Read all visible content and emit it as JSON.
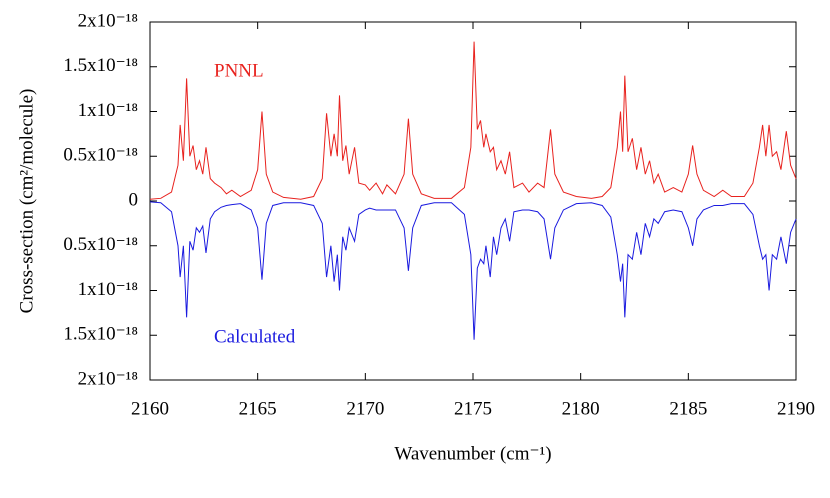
{
  "chart_data": {
    "type": "line",
    "x_label": "Wavenumber (cm⁻¹)",
    "y_label": "Cross-section (cm²/molecule)",
    "x": [
      2160.0,
      2160.5,
      2161.0,
      2161.3,
      2161.4,
      2161.55,
      2161.7,
      2161.85,
      2162.0,
      2162.15,
      2162.3,
      2162.45,
      2162.6,
      2162.8,
      2163.0,
      2163.3,
      2163.55,
      2163.8,
      2164.2,
      2164.7,
      2165.0,
      2165.2,
      2165.4,
      2165.7,
      2166.2,
      2167.0,
      2167.6,
      2168.0,
      2168.2,
      2168.4,
      2168.55,
      2168.7,
      2168.8,
      2168.95,
      2169.1,
      2169.25,
      2169.5,
      2169.7,
      2170.0,
      2170.2,
      2170.5,
      2170.8,
      2171.0,
      2171.4,
      2171.8,
      2172.0,
      2172.2,
      2172.6,
      2173.2,
      2174.0,
      2174.6,
      2174.9,
      2175.05,
      2175.2,
      2175.35,
      2175.5,
      2175.6,
      2175.8,
      2175.95,
      2176.1,
      2176.3,
      2176.5,
      2176.7,
      2176.9,
      2177.3,
      2177.6,
      2178.0,
      2178.3,
      2178.6,
      2178.8,
      2179.2,
      2179.8,
      2180.5,
      2181.0,
      2181.4,
      2181.7,
      2181.85,
      2181.95,
      2182.05,
      2182.2,
      2182.4,
      2182.6,
      2182.8,
      2183.0,
      2183.2,
      2183.4,
      2183.6,
      2183.9,
      2184.3,
      2184.7,
      2185.0,
      2185.2,
      2185.4,
      2185.7,
      2186.2,
      2186.6,
      2187.0,
      2187.6,
      2188.0,
      2188.3,
      2188.45,
      2188.6,
      2188.75,
      2188.9,
      2189.1,
      2189.3,
      2189.55,
      2189.75,
      2190.0
    ],
    "series": [
      {
        "name": "PNNL",
        "color": "#e8221e",
        "values": [
          2e-20,
          3e-20,
          1e-19,
          4e-19,
          8.5e-19,
          4.5e-19,
          1.37e-18,
          5e-19,
          6.2e-19,
          3.5e-19,
          4.5e-19,
          3e-19,
          6e-19,
          2.5e-19,
          2e-19,
          1.5e-19,
          8e-20,
          1.2e-19,
          5e-20,
          1.2e-19,
          3.5e-19,
          1e-18,
          3e-19,
          1e-19,
          4e-20,
          2e-20,
          5e-20,
          2.5e-19,
          9.8e-19,
          5e-19,
          7.5e-19,
          5e-19,
          1.18e-18,
          4.5e-19,
          6.2e-19,
          3e-19,
          6e-19,
          2e-19,
          1.8e-19,
          1.2e-19,
          2e-19,
          8e-20,
          1.8e-19,
          8e-20,
          3e-19,
          9.2e-19,
          3e-19,
          8e-20,
          3e-20,
          3e-20,
          1.5e-19,
          6e-19,
          1.78e-18,
          8e-19,
          9e-19,
          6e-19,
          7.5e-19,
          5.5e-19,
          6e-19,
          3.5e-19,
          4.5e-19,
          3e-19,
          5.5e-19,
          1.5e-19,
          2e-19,
          1e-19,
          2e-19,
          1.5e-19,
          8e-19,
          3e-19,
          1e-19,
          5e-20,
          3e-20,
          5e-20,
          1.5e-19,
          6e-19,
          1e-18,
          5.5e-19,
          1.4e-18,
          5.5e-19,
          7e-19,
          3.5e-19,
          6e-19,
          3e-19,
          4.5e-19,
          2e-19,
          3e-19,
          1e-19,
          1.5e-19,
          1e-19,
          3e-19,
          6.2e-19,
          3e-19,
          1.2e-19,
          5e-20,
          1.2e-19,
          5e-20,
          5e-20,
          2e-19,
          6e-19,
          8.5e-19,
          5e-19,
          8.5e-19,
          5e-19,
          5.5e-19,
          3.5e-19,
          7.8e-19,
          4e-19,
          2.5e-19
        ]
      },
      {
        "name": "Calculated",
        "color": "#1a1adf",
        "values": [
          -1e-20,
          -2e-20,
          -1.2e-19,
          -5e-19,
          -8.5e-19,
          -5e-19,
          -1.3e-18,
          -4.5e-19,
          -5.5e-19,
          -3e-19,
          -3.5e-19,
          -2.8e-19,
          -5.8e-19,
          -2e-19,
          -1.2e-19,
          -7e-20,
          -5e-20,
          -4e-20,
          -3e-20,
          -1e-19,
          -3e-19,
          -8.8e-19,
          -2.5e-19,
          -5e-20,
          -2e-20,
          -2e-20,
          -5e-20,
          -2.5e-19,
          -8.5e-19,
          -5e-19,
          -9e-19,
          -6e-19,
          -1e-18,
          -4e-19,
          -5.5e-19,
          -3e-19,
          -4.5e-19,
          -1.5e-19,
          -1e-19,
          -8e-20,
          -1e-19,
          -1e-19,
          -1e-19,
          -1e-19,
          -3e-19,
          -7.8e-19,
          -3e-19,
          -5e-20,
          -2e-20,
          -2e-20,
          -1.5e-19,
          -6e-19,
          -1.55e-18,
          -7.5e-19,
          -6.5e-19,
          -7e-19,
          -5e-19,
          -8.5e-19,
          -4e-19,
          -6e-19,
          -3e-19,
          -2e-19,
          -4.5e-19,
          -1.2e-19,
          -1e-19,
          -1e-19,
          -1.2e-19,
          -2e-19,
          -6.5e-19,
          -3e-19,
          -1e-19,
          -3e-20,
          -2e-20,
          -5e-20,
          -1.8e-19,
          -6e-19,
          -9e-19,
          -7e-19,
          -1.3e-18,
          -6e-19,
          -6.5e-19,
          -3.5e-19,
          -6e-19,
          -2.5e-19,
          -4e-19,
          -2e-19,
          -2.5e-19,
          -1.2e-19,
          -1e-19,
          -1.2e-19,
          -3e-19,
          -5e-19,
          -2e-19,
          -1e-19,
          -5e-20,
          -5e-20,
          -3e-20,
          -3e-20,
          -1.5e-19,
          -5e-19,
          -6.5e-19,
          -6e-19,
          -1e-18,
          -6e-19,
          -6.5e-19,
          -4e-19,
          -7e-19,
          -3.5e-19,
          -2e-19
        ]
      }
    ],
    "xlim": [
      2160,
      2190
    ],
    "ylim": [
      -2e-18,
      2e-18
    ],
    "xticks": [
      2160,
      2165,
      2170,
      2175,
      2180,
      2185,
      2190
    ],
    "yticks": [
      {
        "value": 2e-18,
        "label": "2x10⁻¹⁸"
      },
      {
        "value": 1.5e-18,
        "label": "1.5x10⁻¹⁸"
      },
      {
        "value": 1e-18,
        "label": "1x10⁻¹⁸"
      },
      {
        "value": 5e-19,
        "label": "0.5x10⁻¹⁸"
      },
      0,
      {
        "value": -5e-19,
        "label": "0.5x10⁻¹⁸"
      },
      {
        "value": -1e-18,
        "label": "1x10⁻¹⁸"
      },
      {
        "value": -1.5e-18,
        "label": "1.5x10⁻¹⁸"
      },
      {
        "value": -2e-18,
        "label": "2x10⁻¹⁸"
      }
    ]
  }
}
